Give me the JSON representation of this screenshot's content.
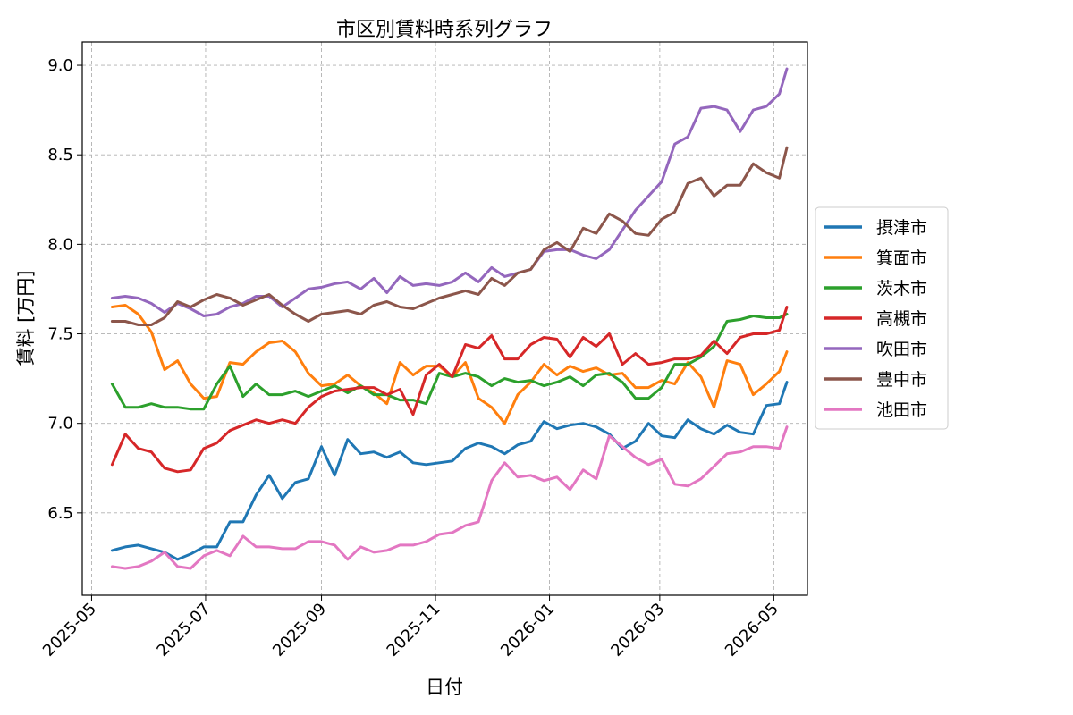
{
  "chart_data": {
    "type": "line",
    "title": "市区別賃料時系列グラフ",
    "xlabel": "日付",
    "ylabel": "賃料 [万円]",
    "x_ticks": [
      "2025-05",
      "2025-07",
      "2025-09",
      "2025-11",
      "2026-01",
      "2026-03",
      "2026-05"
    ],
    "y_ticks": [
      "6.5",
      "7.0",
      "7.5",
      "8.0",
      "8.5",
      "9.0"
    ],
    "xlim": [
      "2025-04-26",
      "2026-05-19"
    ],
    "ylim": [
      6.04,
      9.13
    ],
    "grid": true,
    "legend_position": "outside-right",
    "x": [
      "2025-05-12",
      "2025-05-19",
      "2025-05-26",
      "2025-06-02",
      "2025-06-09",
      "2025-06-16",
      "2025-06-23",
      "2025-06-30",
      "2025-07-07",
      "2025-07-14",
      "2025-07-21",
      "2025-07-28",
      "2025-08-04",
      "2025-08-11",
      "2025-08-18",
      "2025-08-25",
      "2025-09-01",
      "2025-09-08",
      "2025-09-15",
      "2025-09-22",
      "2025-09-29",
      "2025-10-06",
      "2025-10-13",
      "2025-10-20",
      "2025-10-27",
      "2025-11-03",
      "2025-11-10",
      "2025-11-17",
      "2025-11-24",
      "2025-12-01",
      "2025-12-08",
      "2025-12-15",
      "2025-12-22",
      "2025-12-29",
      "2026-01-05",
      "2026-01-12",
      "2026-01-19",
      "2026-01-26",
      "2026-02-02",
      "2026-02-09",
      "2026-02-16",
      "2026-02-23",
      "2026-03-02",
      "2026-03-09",
      "2026-03-16",
      "2026-03-23",
      "2026-03-30",
      "2026-04-06",
      "2026-04-13",
      "2026-04-20",
      "2026-04-27",
      "2026-05-04",
      "2026-05-08"
    ],
    "series": [
      {
        "name": "摂津市",
        "color": "#1f77b4",
        "values": [
          6.29,
          6.31,
          6.32,
          6.3,
          6.28,
          6.24,
          6.27,
          6.31,
          6.31,
          6.45,
          6.45,
          6.6,
          6.71,
          6.58,
          6.67,
          6.69,
          6.87,
          6.71,
          6.91,
          6.83,
          6.84,
          6.81,
          6.84,
          6.78,
          6.77,
          6.78,
          6.79,
          6.86,
          6.89,
          6.87,
          6.83,
          6.88,
          6.9,
          7.01,
          6.97,
          6.99,
          7.0,
          6.98,
          6.94,
          6.86,
          6.9,
          7.0,
          6.93,
          6.92,
          7.02,
          6.97,
          6.94,
          6.99,
          6.95,
          6.94,
          7.1,
          7.11,
          7.23
        ]
      },
      {
        "name": "箕面市",
        "color": "#ff7f0e",
        "values": [
          7.65,
          7.66,
          7.61,
          7.51,
          7.3,
          7.35,
          7.22,
          7.14,
          7.15,
          7.34,
          7.33,
          7.4,
          7.45,
          7.46,
          7.4,
          7.28,
          7.21,
          7.22,
          7.27,
          7.21,
          7.17,
          7.11,
          7.34,
          7.27,
          7.32,
          7.32,
          7.26,
          7.34,
          7.14,
          7.09,
          7.0,
          7.16,
          7.23,
          7.33,
          7.27,
          7.32,
          7.29,
          7.31,
          7.27,
          7.28,
          7.2,
          7.2,
          7.24,
          7.22,
          7.34,
          7.26,
          7.09,
          7.35,
          7.33,
          7.16,
          7.22,
          7.29,
          7.4
        ]
      },
      {
        "name": "茨木市",
        "color": "#2ca02c",
        "values": [
          7.22,
          7.09,
          7.09,
          7.11,
          7.09,
          7.09,
          7.08,
          7.08,
          7.22,
          7.32,
          7.15,
          7.22,
          7.16,
          7.16,
          7.18,
          7.15,
          7.18,
          7.21,
          7.17,
          7.21,
          7.16,
          7.16,
          7.13,
          7.13,
          7.11,
          7.28,
          7.26,
          7.28,
          7.26,
          7.21,
          7.25,
          7.23,
          7.24,
          7.21,
          7.23,
          7.26,
          7.21,
          7.27,
          7.28,
          7.23,
          7.14,
          7.14,
          7.2,
          7.33,
          7.33,
          7.37,
          7.43,
          7.57,
          7.58,
          7.6,
          7.59,
          7.59,
          7.61
        ]
      },
      {
        "name": "高槻市",
        "color": "#d62728",
        "values": [
          6.77,
          6.94,
          6.86,
          6.84,
          6.75,
          6.73,
          6.74,
          6.86,
          6.89,
          6.96,
          6.99,
          7.02,
          7.0,
          7.02,
          7.0,
          7.09,
          7.15,
          7.18,
          7.19,
          7.2,
          7.2,
          7.16,
          7.19,
          7.05,
          7.27,
          7.33,
          7.26,
          7.44,
          7.42,
          7.49,
          7.36,
          7.36,
          7.44,
          7.48,
          7.47,
          7.37,
          7.48,
          7.43,
          7.5,
          7.33,
          7.39,
          7.33,
          7.34,
          7.36,
          7.36,
          7.38,
          7.46,
          7.39,
          7.48,
          7.5,
          7.5,
          7.52,
          7.65
        ]
      },
      {
        "name": "吹田市",
        "color": "#9467bd",
        "values": [
          7.7,
          7.71,
          7.7,
          7.67,
          7.62,
          7.67,
          7.64,
          7.6,
          7.61,
          7.65,
          7.67,
          7.71,
          7.71,
          7.65,
          7.7,
          7.75,
          7.76,
          7.78,
          7.79,
          7.75,
          7.81,
          7.73,
          7.82,
          7.77,
          7.78,
          7.77,
          7.79,
          7.84,
          7.79,
          7.87,
          7.82,
          7.84,
          7.86,
          7.96,
          7.97,
          7.97,
          7.94,
          7.92,
          7.97,
          8.08,
          8.19,
          8.27,
          8.35,
          8.56,
          8.6,
          8.76,
          8.77,
          8.75,
          8.63,
          8.75,
          8.77,
          8.84,
          8.98
        ]
      },
      {
        "name": "豊中市",
        "color": "#8c564b",
        "values": [
          7.57,
          7.57,
          7.55,
          7.55,
          7.59,
          7.68,
          7.65,
          7.69,
          7.72,
          7.7,
          7.66,
          7.69,
          7.72,
          7.66,
          7.61,
          7.57,
          7.61,
          7.62,
          7.63,
          7.61,
          7.66,
          7.68,
          7.65,
          7.64,
          7.67,
          7.7,
          7.72,
          7.74,
          7.72,
          7.81,
          7.77,
          7.84,
          7.86,
          7.97,
          8.01,
          7.96,
          8.09,
          8.06,
          8.17,
          8.13,
          8.06,
          8.05,
          8.14,
          8.18,
          8.34,
          8.37,
          8.27,
          8.33,
          8.33,
          8.45,
          8.4,
          8.37,
          8.54
        ]
      },
      {
        "name": "池田市",
        "color": "#e377c2",
        "values": [
          6.2,
          6.19,
          6.2,
          6.23,
          6.28,
          6.2,
          6.19,
          6.26,
          6.29,
          6.26,
          6.37,
          6.31,
          6.31,
          6.3,
          6.3,
          6.34,
          6.34,
          6.32,
          6.24,
          6.31,
          6.28,
          6.29,
          6.32,
          6.32,
          6.34,
          6.38,
          6.39,
          6.43,
          6.45,
          6.68,
          6.78,
          6.7,
          6.71,
          6.68,
          6.7,
          6.63,
          6.74,
          6.69,
          6.93,
          6.87,
          6.81,
          6.77,
          6.8,
          6.66,
          6.65,
          6.69,
          6.76,
          6.83,
          6.84,
          6.87,
          6.87,
          6.86,
          6.98
        ]
      }
    ]
  }
}
